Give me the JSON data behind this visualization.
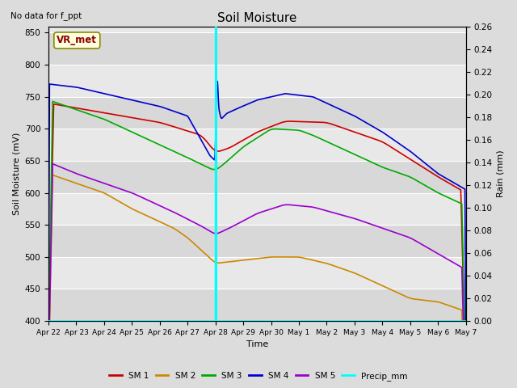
{
  "title": "Soil Moisture",
  "top_left_text": "No data for f_ppt",
  "ylabel_left": "Soil Moisture (mV)",
  "ylabel_right": "Rain (mm)",
  "xlabel": "Time",
  "ylim_left": [
    400,
    860
  ],
  "ylim_right": [
    0.0,
    0.26
  ],
  "background_color": "#dcdcdc",
  "vline_x": 6.0,
  "vline_color": "cyan",
  "vline_lw": 2.0,
  "box_label": "VR_met",
  "x_ticks": [
    0,
    1,
    2,
    3,
    4,
    5,
    6,
    7,
    8,
    9,
    10,
    11,
    12,
    13,
    14,
    15
  ],
  "x_tick_labels": [
    "Apr 22",
    "Apr 23",
    "Apr 24",
    "Apr 25",
    "Apr 26",
    "Apr 27",
    "Apr 28",
    "Apr 29",
    "Apr 30",
    "May 1",
    "May 2",
    "May 3",
    "May 4",
    "May 5",
    "May 6",
    "May 7"
  ],
  "series": {
    "SM1": {
      "color": "#cc0000",
      "label": "SM 1"
    },
    "SM2": {
      "color": "#cc8800",
      "label": "SM 2"
    },
    "SM3": {
      "color": "#00aa00",
      "label": "SM 3"
    },
    "SM4": {
      "color": "#0000cc",
      "label": "SM 4"
    },
    "SM5": {
      "color": "#9900cc",
      "label": "SM 5"
    },
    "Precip": {
      "color": "cyan",
      "label": "Precip_mm"
    }
  },
  "figsize": [
    6.4,
    4.8
  ],
  "dpi": 100
}
